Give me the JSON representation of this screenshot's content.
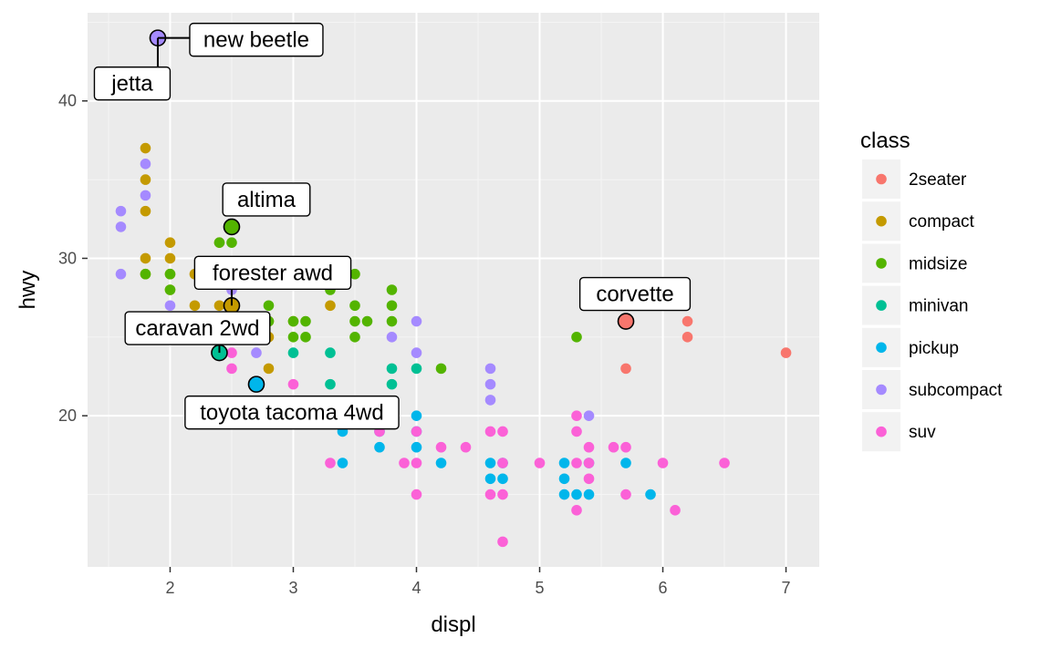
{
  "chart_data": {
    "type": "scatter",
    "xlabel": "displ",
    "ylabel": "hwy",
    "xlim": [
      1.33,
      7.27
    ],
    "ylim": [
      10.4,
      45.6
    ],
    "x_ticks": [
      2,
      3,
      4,
      5,
      6,
      7
    ],
    "x_tick_labels": [
      "2",
      "3",
      "4",
      "5",
      "6",
      "7"
    ],
    "y_ticks": [
      20,
      30,
      40
    ],
    "y_tick_labels": [
      "20",
      "30",
      "40"
    ],
    "grid": true,
    "legend": {
      "title": "class",
      "placement": "right",
      "entries": [
        {
          "name": "2seater",
          "color": "#F8766D"
        },
        {
          "name": "compact",
          "color": "#C49A00"
        },
        {
          "name": "midsize",
          "color": "#53B400"
        },
        {
          "name": "minivan",
          "color": "#00C094"
        },
        {
          "name": "pickup",
          "color": "#00B6EB"
        },
        {
          "name": "subcompact",
          "color": "#A58AFF"
        },
        {
          "name": "suv",
          "color": "#FB61D7"
        }
      ]
    },
    "series": [
      {
        "name": "2seater",
        "color": "#F8766D",
        "points": [
          [
            5.7,
            26
          ],
          [
            5.7,
            23
          ],
          [
            6.2,
            26
          ],
          [
            6.2,
            25
          ],
          [
            7.0,
            24
          ]
        ]
      },
      {
        "name": "compact",
        "color": "#C49A00",
        "points": [
          [
            1.8,
            37
          ],
          [
            1.8,
            35
          ],
          [
            1.8,
            33
          ],
          [
            1.8,
            30
          ],
          [
            1.8,
            29
          ],
          [
            2.0,
            31
          ],
          [
            2.0,
            30
          ],
          [
            2.0,
            29
          ],
          [
            2.0,
            28
          ],
          [
            2.2,
            29
          ],
          [
            2.2,
            27
          ],
          [
            2.4,
            31
          ],
          [
            2.4,
            27
          ],
          [
            2.5,
            27
          ],
          [
            2.8,
            26
          ],
          [
            2.8,
            25
          ],
          [
            2.8,
            23
          ],
          [
            3.0,
            26
          ],
          [
            3.3,
            27
          ]
        ]
      },
      {
        "name": "midsize",
        "color": "#53B400",
        "points": [
          [
            1.8,
            29
          ],
          [
            2.0,
            29
          ],
          [
            2.0,
            28
          ],
          [
            2.4,
            31
          ],
          [
            2.5,
            32
          ],
          [
            2.5,
            31
          ],
          [
            2.5,
            29
          ],
          [
            2.5,
            27
          ],
          [
            2.8,
            29
          ],
          [
            2.8,
            27
          ],
          [
            2.8,
            26
          ],
          [
            3.0,
            26
          ],
          [
            3.0,
            25
          ],
          [
            3.1,
            26
          ],
          [
            3.1,
            25
          ],
          [
            3.3,
            28
          ],
          [
            3.5,
            29
          ],
          [
            3.5,
            27
          ],
          [
            3.5,
            26
          ],
          [
            3.5,
            25
          ],
          [
            3.6,
            26
          ],
          [
            3.8,
            28
          ],
          [
            3.8,
            27
          ],
          [
            3.8,
            26
          ],
          [
            4.2,
            23
          ],
          [
            5.3,
            25
          ]
        ]
      },
      {
        "name": "minivan",
        "color": "#00C094",
        "points": [
          [
            2.4,
            24
          ],
          [
            3.0,
            24
          ],
          [
            3.3,
            24
          ],
          [
            3.3,
            22
          ],
          [
            3.8,
            23
          ],
          [
            3.8,
            22
          ],
          [
            4.0,
            23
          ]
        ]
      },
      {
        "name": "pickup",
        "color": "#00B6EB",
        "points": [
          [
            2.7,
            22
          ],
          [
            3.4,
            19
          ],
          [
            3.4,
            17
          ],
          [
            3.7,
            19
          ],
          [
            3.7,
            18
          ],
          [
            4.0,
            20
          ],
          [
            4.0,
            19
          ],
          [
            4.0,
            18
          ],
          [
            4.2,
            17
          ],
          [
            4.6,
            17
          ],
          [
            4.6,
            16
          ],
          [
            4.7,
            17
          ],
          [
            4.7,
            16
          ],
          [
            5.2,
            17
          ],
          [
            5.2,
            16
          ],
          [
            5.2,
            15
          ],
          [
            5.3,
            15
          ],
          [
            5.4,
            17
          ],
          [
            5.4,
            15
          ],
          [
            5.7,
            17
          ],
          [
            5.9,
            15
          ]
        ]
      },
      {
        "name": "subcompact",
        "color": "#A58AFF",
        "points": [
          [
            1.6,
            33
          ],
          [
            1.6,
            32
          ],
          [
            1.6,
            29
          ],
          [
            1.8,
            36
          ],
          [
            1.8,
            34
          ],
          [
            1.9,
            44
          ],
          [
            2.0,
            27
          ],
          [
            2.5,
            28
          ],
          [
            2.5,
            25
          ],
          [
            2.7,
            24
          ],
          [
            3.8,
            25
          ],
          [
            4.0,
            26
          ],
          [
            4.0,
            24
          ],
          [
            4.6,
            23
          ],
          [
            4.6,
            22
          ],
          [
            4.6,
            21
          ],
          [
            5.4,
            20
          ]
        ]
      },
      {
        "name": "suv",
        "color": "#FB61D7",
        "points": [
          [
            2.5,
            24
          ],
          [
            2.5,
            23
          ],
          [
            3.0,
            22
          ],
          [
            3.3,
            17
          ],
          [
            3.7,
            19
          ],
          [
            3.9,
            17
          ],
          [
            4.0,
            19
          ],
          [
            4.0,
            17
          ],
          [
            4.0,
            15
          ],
          [
            4.2,
            18
          ],
          [
            4.4,
            18
          ],
          [
            4.6,
            19
          ],
          [
            4.6,
            15
          ],
          [
            4.7,
            19
          ],
          [
            4.7,
            17
          ],
          [
            4.7,
            15
          ],
          [
            4.7,
            12
          ],
          [
            5.0,
            17
          ],
          [
            5.3,
            20
          ],
          [
            5.3,
            19
          ],
          [
            5.3,
            17
          ],
          [
            5.3,
            14
          ],
          [
            5.4,
            18
          ],
          [
            5.4,
            17
          ],
          [
            5.4,
            16
          ],
          [
            5.6,
            18
          ],
          [
            5.7,
            18
          ],
          [
            5.7,
            15
          ],
          [
            6.0,
            17
          ],
          [
            6.1,
            14
          ],
          [
            6.5,
            17
          ]
        ]
      }
    ],
    "annotations": [
      {
        "label": "new beetle",
        "x": 1.9,
        "y": 44,
        "color": "#A58AFF"
      },
      {
        "label": "jetta",
        "x": 1.9,
        "y": 44,
        "color": "#A58AFF"
      },
      {
        "label": "altima",
        "x": 2.5,
        "y": 32,
        "color": "#53B400"
      },
      {
        "label": "forester awd",
        "x": 2.5,
        "y": 27,
        "color": "#C49A00"
      },
      {
        "label": "caravan 2wd",
        "x": 2.4,
        "y": 24,
        "color": "#00C094"
      },
      {
        "label": "toyota tacoma 4wd",
        "x": 2.7,
        "y": 22,
        "color": "#00B6EB"
      },
      {
        "label": "corvette",
        "x": 5.7,
        "y": 26,
        "color": "#F8766D"
      }
    ]
  }
}
